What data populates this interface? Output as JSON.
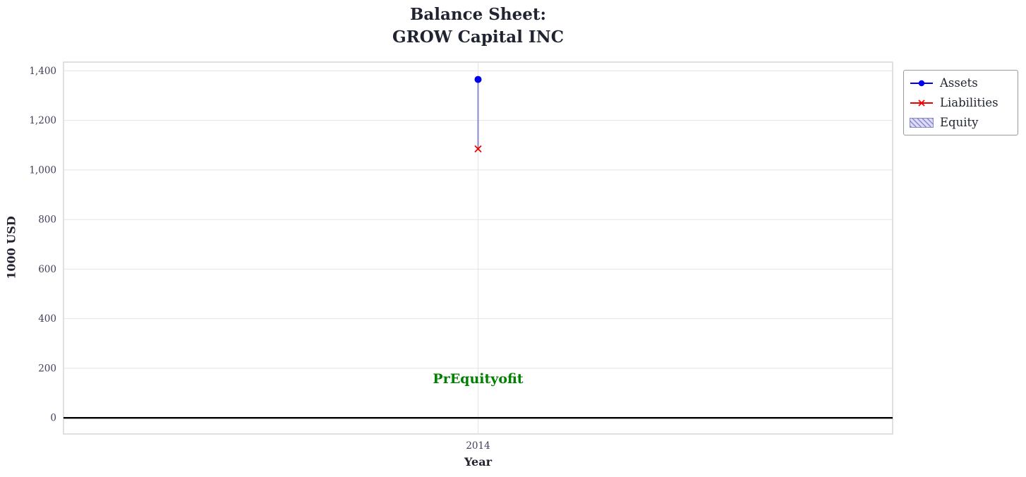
{
  "title": {
    "line1": "Balance Sheet:",
    "line2": "GROW Capital INC"
  },
  "axes": {
    "xlabel": "Year",
    "ylabel": "1000 USD"
  },
  "legend": {
    "items": [
      {
        "label": "Assets"
      },
      {
        "label": "Liabilities"
      },
      {
        "label": "Equity"
      }
    ]
  },
  "chart_data": {
    "type": "line",
    "title": "Balance Sheet: GROW Capital INC",
    "xlabel": "Year",
    "ylabel": "1000 USD",
    "x": [
      2014
    ],
    "xtick_labels": [
      "2014"
    ],
    "ylim": [
      -65,
      1435
    ],
    "yticks": [
      0,
      200,
      400,
      600,
      800,
      1000,
      1200,
      1400
    ],
    "ytick_labels": [
      "0",
      "200",
      "400",
      "600",
      "800",
      "1,000",
      "1,200",
      "1,400"
    ],
    "grid": true,
    "legend_position": "outside upper right",
    "series": [
      {
        "name": "Assets",
        "values": [
          1365
        ],
        "color": "#0000ee",
        "marker": "circle"
      },
      {
        "name": "Liabilities",
        "values": [
          1085
        ],
        "color": "#ee0000",
        "marker": "x"
      },
      {
        "name": "Equity",
        "type": "fill_between",
        "between": [
          "Liabilities",
          "Assets"
        ],
        "values": [
          280
        ],
        "fill": "#dcdcf8",
        "edge": "#8888cc",
        "hatch": "////"
      }
    ],
    "zero_line": {
      "y": 0,
      "color": "#000000"
    },
    "annotation": {
      "text": "PrEquityofit",
      "x": 2014,
      "y": 140,
      "color": "#008000"
    },
    "plot_border_color": "#cccccc",
    "grid_color": "#e4e4e4"
  }
}
